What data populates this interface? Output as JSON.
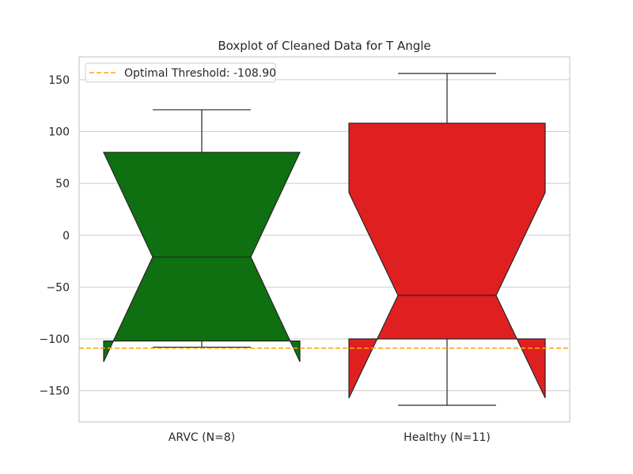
{
  "chart_data": {
    "type": "boxplot",
    "title": "Boxplot of Cleaned Data for T Angle",
    "xlabel": "",
    "ylabel": "",
    "ylim": [
      -180,
      172
    ],
    "yticks": [
      -150,
      -100,
      -50,
      0,
      50,
      100,
      150
    ],
    "grid": "horizontal",
    "notched": true,
    "legend": {
      "placement": "top-left",
      "entries": [
        "Optimal Threshold: -108.90"
      ]
    },
    "categories": [
      "ARVC (N=8)",
      "Healthy (N=11)"
    ],
    "boxes": [
      {
        "category": "ARVC (N=8)",
        "color": "#0e7010",
        "q1": -102,
        "median": -21,
        "q3": 80,
        "notch_low": -122,
        "notch_high": 80,
        "whisker_low": -108,
        "whisker_high": 121
      },
      {
        "category": "Healthy (N=11)",
        "color": "#e02020",
        "q1": -100,
        "median": -58,
        "q3": 108,
        "notch_low": -157,
        "notch_high": 41,
        "whisker_low": -164,
        "whisker_high": 156
      }
    ],
    "threshold": {
      "value": -108.9,
      "color": "#ffa500",
      "label": "Optimal Threshold: -108.90"
    }
  }
}
